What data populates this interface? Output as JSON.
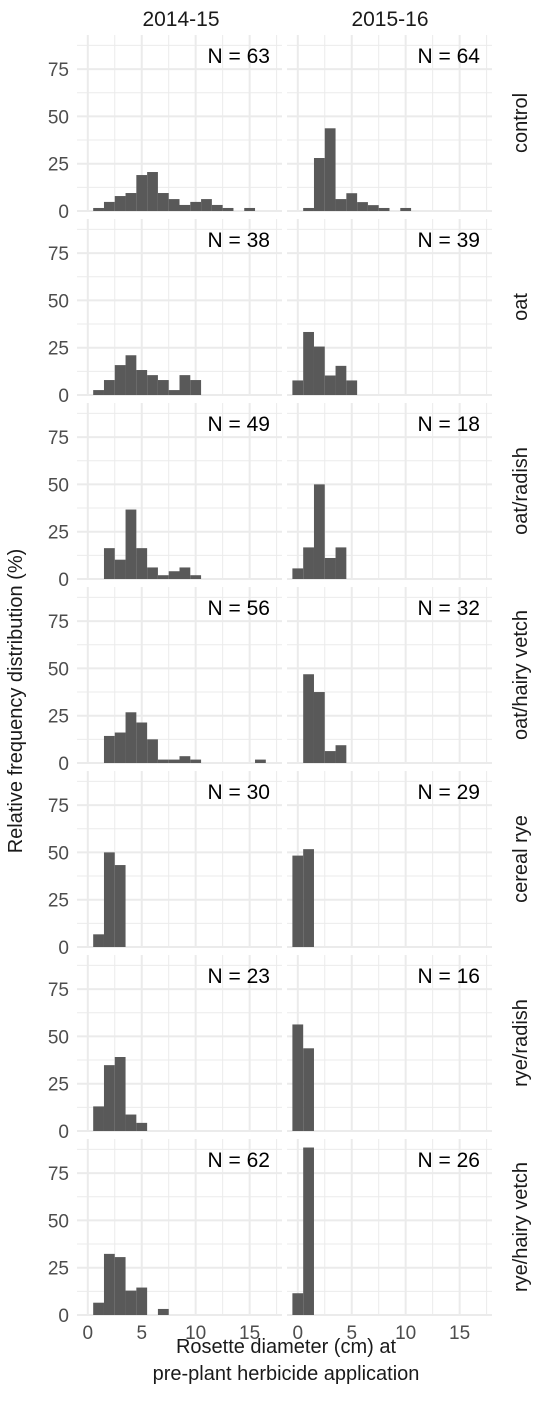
{
  "chart_data": {
    "type": "bar",
    "title": "",
    "xlabel_lines": [
      "Rosette diameter (cm) at",
      "pre-plant herbicide application"
    ],
    "ylabel": "Relative frequency distribution (%)",
    "columns": [
      "2014-15",
      "2015-16"
    ],
    "rows": [
      "control",
      "oat",
      "oat/radish",
      "oat/hairy vetch",
      "cereal rye",
      "rye/radish",
      "rye/hairy vetch"
    ],
    "xlim": [
      -1,
      18
    ],
    "ylim": [
      0,
      93
    ],
    "x_ticks": [
      0,
      5,
      10,
      15
    ],
    "y_ticks": [
      0,
      25,
      50,
      75
    ],
    "bin_width": 1,
    "grid": true,
    "bar_color": "#595959",
    "panel_background": "#ffffff",
    "grid_color": "#ebebeb",
    "panels": [
      {
        "row": "control",
        "column": "2014-15",
        "n_label": "N = 63",
        "bin_centers": [
          1,
          2,
          3,
          4,
          5,
          6,
          7,
          8,
          9,
          10,
          11,
          12,
          13,
          14,
          15,
          16
        ],
        "values": [
          1.6,
          4.8,
          7.9,
          9.5,
          19,
          20.6,
          9.5,
          6.3,
          3.2,
          4.8,
          6.3,
          3.2,
          1.6,
          0,
          1.6,
          0
        ]
      },
      {
        "row": "control",
        "column": "2015-16",
        "n_label": "N = 64",
        "bin_centers": [
          1,
          2,
          3,
          4,
          5,
          6,
          7,
          8,
          9,
          10,
          11,
          12,
          13,
          14,
          15,
          16
        ],
        "values": [
          1.6,
          28,
          43.7,
          6.3,
          9.4,
          4.7,
          3.1,
          1.6,
          0,
          1.6,
          0,
          0,
          0,
          0,
          0,
          0
        ]
      },
      {
        "row": "oat",
        "column": "2014-15",
        "n_label": "N = 38",
        "bin_centers": [
          1,
          2,
          3,
          4,
          5,
          6,
          7,
          8,
          9,
          10
        ],
        "values": [
          2.6,
          7.9,
          15.8,
          21,
          13.2,
          10.5,
          7.9,
          2.6,
          10.5,
          7.9
        ]
      },
      {
        "row": "oat",
        "column": "2015-16",
        "n_label": "N = 39",
        "bin_centers": [
          0,
          1,
          2,
          3,
          4,
          5
        ],
        "values": [
          7.7,
          33.3,
          25.6,
          10.3,
          15.4,
          7.7
        ]
      },
      {
        "row": "oat/radish",
        "column": "2014-15",
        "n_label": "N = 49",
        "bin_centers": [
          2,
          3,
          4,
          5,
          6,
          7,
          8,
          9,
          10
        ],
        "values": [
          16.3,
          10.2,
          36.7,
          16.3,
          6.1,
          2,
          4.1,
          6.1,
          2
        ]
      },
      {
        "row": "oat/radish",
        "column": "2015-16",
        "n_label": "N = 18",
        "bin_centers": [
          0,
          1,
          2,
          3,
          4
        ],
        "values": [
          5.6,
          16.7,
          50,
          11.1,
          16.7
        ]
      },
      {
        "row": "oat/hairy vetch",
        "column": "2014-15",
        "n_label": "N = 56",
        "bin_centers": [
          2,
          3,
          4,
          5,
          6,
          7,
          8,
          9,
          10,
          11,
          12,
          13,
          14,
          15,
          16
        ],
        "values": [
          14.3,
          16.1,
          26.8,
          21.4,
          12.5,
          1.8,
          1.8,
          3.6,
          1.8,
          0,
          0,
          0,
          0,
          0,
          1.8
        ]
      },
      {
        "row": "oat/hairy vetch",
        "column": "2015-16",
        "n_label": "N = 32",
        "bin_centers": [
          1,
          2,
          3,
          4
        ],
        "values": [
          46.9,
          37.5,
          6.3,
          9.4
        ]
      },
      {
        "row": "cereal rye",
        "column": "2014-15",
        "n_label": "N = 30",
        "bin_centers": [
          1,
          2,
          3
        ],
        "values": [
          6.7,
          50,
          43.3
        ]
      },
      {
        "row": "cereal rye",
        "column": "2015-16",
        "n_label": "N = 29",
        "bin_centers": [
          0,
          1
        ],
        "values": [
          48.3,
          51.7
        ]
      },
      {
        "row": "rye/radish",
        "column": "2014-15",
        "n_label": "N = 23",
        "bin_centers": [
          1,
          2,
          3,
          4,
          5
        ],
        "values": [
          13,
          34.8,
          39.1,
          8.7,
          4.3
        ]
      },
      {
        "row": "rye/radish",
        "column": "2015-16",
        "n_label": "N = 16",
        "bin_centers": [
          0,
          1
        ],
        "values": [
          56.3,
          43.7
        ]
      },
      {
        "row": "rye/hairy vetch",
        "column": "2014-15",
        "n_label": "N = 62",
        "bin_centers": [
          1,
          2,
          3,
          4,
          5,
          6,
          7
        ],
        "values": [
          6.5,
          32.3,
          30.6,
          12.9,
          14.5,
          0,
          3.2
        ]
      },
      {
        "row": "rye/hairy vetch",
        "column": "2015-16",
        "n_label": "N = 26",
        "bin_centers": [
          0,
          1
        ],
        "values": [
          11.5,
          88.5
        ]
      }
    ]
  }
}
